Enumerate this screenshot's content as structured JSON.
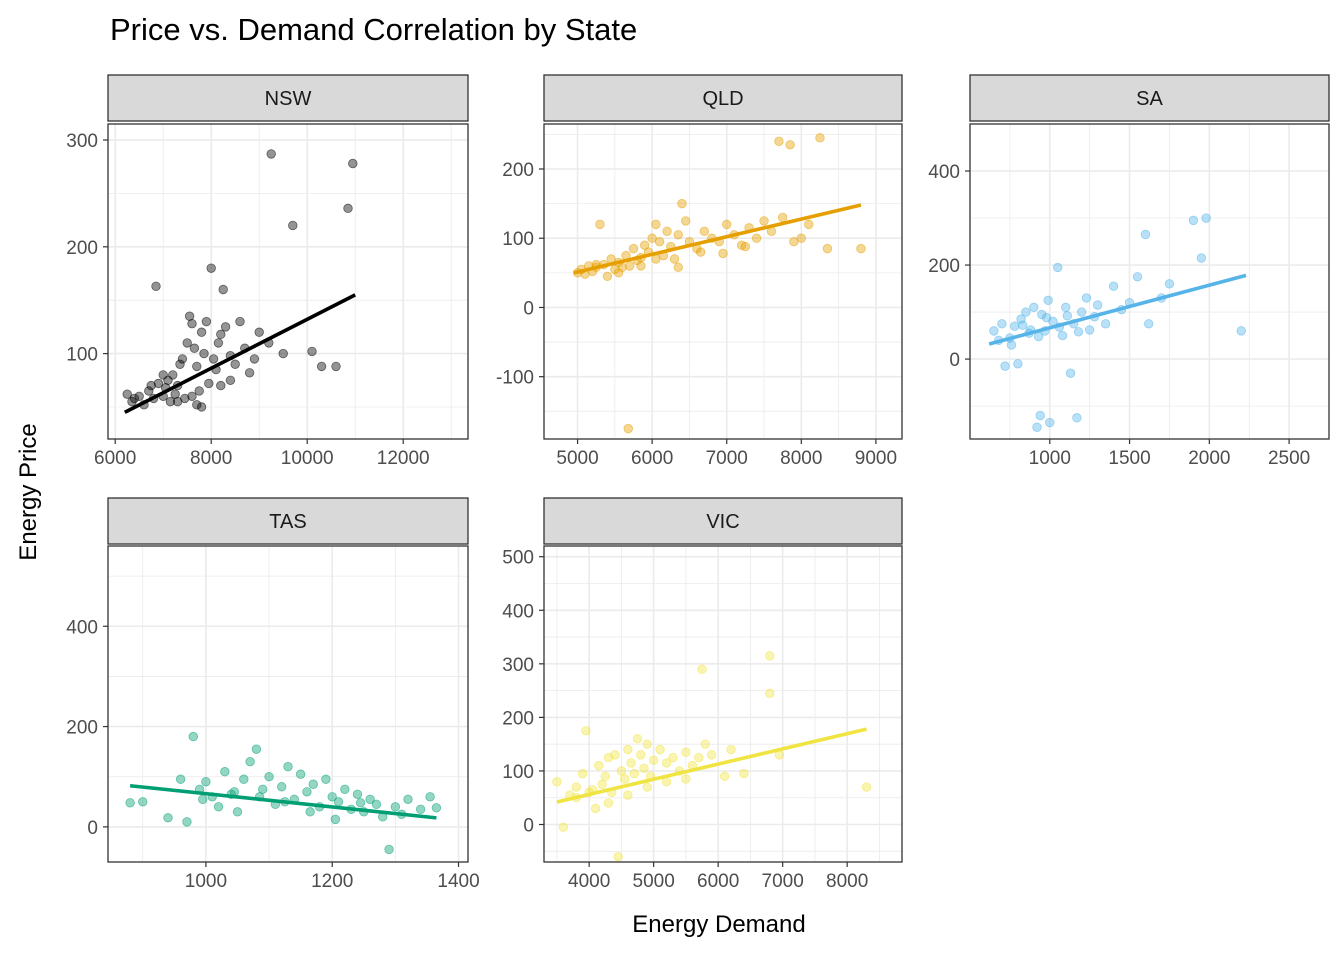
{
  "title": "Price vs. Demand Correlation by State",
  "xlabel": "Energy Demand",
  "ylabel": "Energy Price",
  "colors": {
    "NSW": "#000000",
    "QLD": "#E69F00",
    "SA": "#56B4E9",
    "TAS": "#009E73",
    "VIC": "#F0E442",
    "strip_fill": "#d9d9d9",
    "grid": "#ebebeb"
  },
  "chart_data": [
    {
      "type": "scatter",
      "facet": "NSW",
      "xlim": [
        5850,
        13350
      ],
      "ylim": [
        20,
        315
      ],
      "x_ticks": [
        6000,
        8000,
        10000,
        12000
      ],
      "y_ticks": [
        100,
        200,
        300
      ],
      "trend": [
        [
          6200,
          45
        ],
        [
          11000,
          155
        ]
      ],
      "points": [
        [
          6250,
          62
        ],
        [
          6350,
          55
        ],
        [
          6400,
          58
        ],
        [
          6500,
          60
        ],
        [
          6600,
          52
        ],
        [
          6700,
          65
        ],
        [
          6750,
          70
        ],
        [
          6800,
          58
        ],
        [
          6900,
          72
        ],
        [
          6850,
          163
        ],
        [
          7000,
          60
        ],
        [
          7050,
          68
        ],
        [
          7100,
          75
        ],
        [
          7150,
          55
        ],
        [
          7200,
          80
        ],
        [
          7250,
          62
        ],
        [
          7300,
          70
        ],
        [
          7350,
          90
        ],
        [
          7400,
          95
        ],
        [
          7450,
          58
        ],
        [
          7500,
          110
        ],
        [
          7550,
          135
        ],
        [
          7600,
          128
        ],
        [
          7650,
          105
        ],
        [
          7700,
          88
        ],
        [
          7750,
          65
        ],
        [
          7800,
          120
        ],
        [
          7850,
          100
        ],
        [
          7900,
          130
        ],
        [
          7950,
          72
        ],
        [
          8000,
          180
        ],
        [
          8050,
          95
        ],
        [
          8100,
          85
        ],
        [
          8150,
          110
        ],
        [
          8200,
          118
        ],
        [
          8250,
          160
        ],
        [
          8300,
          125
        ],
        [
          8400,
          98
        ],
        [
          8500,
          90
        ],
        [
          8600,
          130
        ],
        [
          8700,
          105
        ],
        [
          8800,
          82
        ],
        [
          8900,
          95
        ],
        [
          9000,
          120
        ],
        [
          9200,
          110
        ],
        [
          9250,
          287
        ],
        [
          9500,
          100
        ],
        [
          9700,
          220
        ],
        [
          10100,
          102
        ],
        [
          10300,
          88
        ],
        [
          10600,
          88
        ],
        [
          10850,
          236
        ],
        [
          10950,
          278
        ],
        [
          7300,
          55
        ],
        [
          7600,
          60
        ],
        [
          7700,
          52
        ],
        [
          7800,
          50
        ],
        [
          8200,
          70
        ],
        [
          8400,
          75
        ],
        [
          7000,
          80
        ]
      ]
    },
    {
      "type": "scatter",
      "facet": "QLD",
      "xlim": [
        4550,
        9350
      ],
      "ylim": [
        -190,
        265
      ],
      "x_ticks": [
        5000,
        6000,
        7000,
        8000,
        9000
      ],
      "y_ticks": [
        -100,
        0,
        100,
        200
      ],
      "trend": [
        [
          4950,
          50
        ],
        [
          8800,
          148
        ]
      ],
      "points": [
        [
          5000,
          50
        ],
        [
          5050,
          55
        ],
        [
          5100,
          48
        ],
        [
          5150,
          60
        ],
        [
          5200,
          52
        ],
        [
          5250,
          58
        ],
        [
          5300,
          120
        ],
        [
          5350,
          62
        ],
        [
          5400,
          45
        ],
        [
          5450,
          70
        ],
        [
          5500,
          55
        ],
        [
          5550,
          65
        ],
        [
          5600,
          58
        ],
        [
          5650,
          75
        ],
        [
          5680,
          -175
        ],
        [
          5700,
          60
        ],
        [
          5750,
          85
        ],
        [
          5800,
          68
        ],
        [
          5850,
          72
        ],
        [
          5900,
          90
        ],
        [
          5950,
          80
        ],
        [
          6000,
          100
        ],
        [
          6050,
          120
        ],
        [
          6100,
          95
        ],
        [
          6150,
          75
        ],
        [
          6200,
          110
        ],
        [
          6250,
          88
        ],
        [
          6300,
          70
        ],
        [
          6350,
          105
        ],
        [
          6400,
          150
        ],
        [
          6450,
          125
        ],
        [
          6500,
          95
        ],
        [
          6600,
          85
        ],
        [
          6700,
          110
        ],
        [
          6800,
          100
        ],
        [
          6900,
          95
        ],
        [
          7000,
          120
        ],
        [
          7100,
          105
        ],
        [
          7200,
          90
        ],
        [
          7300,
          115
        ],
        [
          7400,
          100
        ],
        [
          7500,
          125
        ],
        [
          7600,
          110
        ],
        [
          7700,
          240
        ],
        [
          7750,
          130
        ],
        [
          7850,
          235
        ],
        [
          7900,
          95
        ],
        [
          8000,
          100
        ],
        [
          8100,
          120
        ],
        [
          8250,
          245
        ],
        [
          8350,
          85
        ],
        [
          8800,
          85
        ],
        [
          5250,
          62
        ],
        [
          5550,
          50
        ],
        [
          5850,
          60
        ],
        [
          6050,
          70
        ],
        [
          6350,
          58
        ],
        [
          6650,
          80
        ],
        [
          6950,
          78
        ],
        [
          7250,
          88
        ]
      ]
    },
    {
      "type": "scatter",
      "facet": "SA",
      "xlim": [
        500,
        2750
      ],
      "ylim": [
        -170,
        500
      ],
      "x_ticks": [
        1000,
        1500,
        2000,
        2500
      ],
      "y_ticks": [
        0,
        200,
        400
      ],
      "trend": [
        [
          620,
          32
        ],
        [
          2230,
          178
        ]
      ],
      "points": [
        [
          650,
          60
        ],
        [
          700,
          75
        ],
        [
          720,
          -15
        ],
        [
          750,
          45
        ],
        [
          780,
          70
        ],
        [
          800,
          -10
        ],
        [
          820,
          85
        ],
        [
          850,
          100
        ],
        [
          870,
          55
        ],
        [
          900,
          110
        ],
        [
          920,
          -145
        ],
        [
          940,
          -120
        ],
        [
          950,
          95
        ],
        [
          970,
          60
        ],
        [
          990,
          125
        ],
        [
          1000,
          -135
        ],
        [
          1020,
          80
        ],
        [
          1050,
          195
        ],
        [
          1080,
          50
        ],
        [
          1100,
          110
        ],
        [
          1130,
          -30
        ],
        [
          1150,
          75
        ],
        [
          1170,
          -125
        ],
        [
          1200,
          100
        ],
        [
          1230,
          130
        ],
        [
          1280,
          90
        ],
        [
          1300,
          115
        ],
        [
          1350,
          75
        ],
        [
          1400,
          155
        ],
        [
          1450,
          105
        ],
        [
          1500,
          120
        ],
        [
          1550,
          175
        ],
        [
          1600,
          265
        ],
        [
          1620,
          75
        ],
        [
          1700,
          130
        ],
        [
          1750,
          160
        ],
        [
          1900,
          295
        ],
        [
          1950,
          215
        ],
        [
          1980,
          300
        ],
        [
          2200,
          60
        ],
        [
          680,
          40
        ],
        [
          760,
          30
        ],
        [
          830,
          72
        ],
        [
          880,
          62
        ],
        [
          930,
          48
        ],
        [
          980,
          88
        ],
        [
          1060,
          68
        ],
        [
          1110,
          92
        ],
        [
          1180,
          58
        ],
        [
          1250,
          62
        ]
      ]
    },
    {
      "type": "scatter",
      "facet": "TAS",
      "xlim": [
        845,
        1415
      ],
      "ylim": [
        -70,
        560
      ],
      "x_ticks": [
        1000,
        1200,
        1400
      ],
      "y_ticks": [
        0,
        200,
        400
      ],
      "trend": [
        [
          880,
          82
        ],
        [
          1365,
          18
        ]
      ],
      "points": [
        [
          880,
          48
        ],
        [
          900,
          50
        ],
        [
          940,
          18
        ],
        [
          960,
          95
        ],
        [
          980,
          180
        ],
        [
          990,
          75
        ],
        [
          1000,
          90
        ],
        [
          1010,
          60
        ],
        [
          1020,
          40
        ],
        [
          1030,
          110
        ],
        [
          1040,
          65
        ],
        [
          1050,
          30
        ],
        [
          1060,
          95
        ],
        [
          1070,
          130
        ],
        [
          1080,
          155
        ],
        [
          1090,
          75
        ],
        [
          1100,
          100
        ],
        [
          1110,
          45
        ],
        [
          1120,
          80
        ],
        [
          1130,
          120
        ],
        [
          1140,
          55
        ],
        [
          1150,
          105
        ],
        [
          1160,
          70
        ],
        [
          1170,
          85
        ],
        [
          1180,
          40
        ],
        [
          1190,
          95
        ],
        [
          1200,
          60
        ],
        [
          1210,
          50
        ],
        [
          1220,
          75
        ],
        [
          1230,
          35
        ],
        [
          1240,
          65
        ],
        [
          1250,
          30
        ],
        [
          1260,
          55
        ],
        [
          1270,
          45
        ],
        [
          1280,
          20
        ],
        [
          1290,
          -45
        ],
        [
          1300,
          40
        ],
        [
          1310,
          25
        ],
        [
          1320,
          55
        ],
        [
          1340,
          35
        ],
        [
          1355,
          60
        ],
        [
          1365,
          38
        ],
        [
          970,
          10
        ],
        [
          995,
          55
        ],
        [
          1045,
          70
        ],
        [
          1085,
          60
        ],
        [
          1125,
          50
        ],
        [
          1165,
          30
        ],
        [
          1205,
          15
        ],
        [
          1245,
          48
        ]
      ]
    },
    {
      "type": "scatter",
      "facet": "VIC",
      "xlim": [
        3300,
        8850
      ],
      "ylim": [
        -70,
        520
      ],
      "x_ticks": [
        4000,
        5000,
        6000,
        7000,
        8000
      ],
      "y_ticks": [
        0,
        100,
        200,
        300,
        400,
        500
      ],
      "trend": [
        [
          3500,
          42
        ],
        [
          8300,
          178
        ]
      ],
      "points": [
        [
          3500,
          80
        ],
        [
          3600,
          -5
        ],
        [
          3700,
          55
        ],
        [
          3800,
          70
        ],
        [
          3900,
          95
        ],
        [
          3950,
          175
        ],
        [
          4050,
          65
        ],
        [
          4100,
          30
        ],
        [
          4150,
          110
        ],
        [
          4200,
          75
        ],
        [
          4250,
          90
        ],
        [
          4300,
          125
        ],
        [
          4350,
          60
        ],
        [
          4400,
          130
        ],
        [
          4450,
          -60
        ],
        [
          4500,
          100
        ],
        [
          4550,
          85
        ],
        [
          4600,
          140
        ],
        [
          4650,
          115
        ],
        [
          4700,
          95
        ],
        [
          4750,
          160
        ],
        [
          4800,
          130
        ],
        [
          4850,
          105
        ],
        [
          4900,
          150
        ],
        [
          4950,
          90
        ],
        [
          5000,
          120
        ],
        [
          5100,
          140
        ],
        [
          5200,
          115
        ],
        [
          5300,
          125
        ],
        [
          5400,
          100
        ],
        [
          5500,
          135
        ],
        [
          5600,
          110
        ],
        [
          5700,
          125
        ],
        [
          5750,
          290
        ],
        [
          5800,
          150
        ],
        [
          5900,
          130
        ],
        [
          6100,
          90
        ],
        [
          6200,
          140
        ],
        [
          6400,
          95
        ],
        [
          6800,
          315
        ],
        [
          6800,
          245
        ],
        [
          6950,
          130
        ],
        [
          8300,
          70
        ],
        [
          3800,
          50
        ],
        [
          4000,
          60
        ],
        [
          4300,
          40
        ],
        [
          4600,
          55
        ],
        [
          4900,
          70
        ],
        [
          5200,
          80
        ],
        [
          5500,
          85
        ]
      ]
    }
  ]
}
